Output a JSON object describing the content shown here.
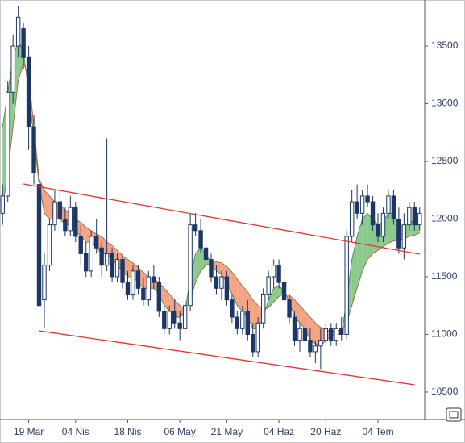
{
  "chart_data": {
    "type": "candlestick",
    "categories": [
      null,
      null,
      null,
      null,
      null,
      "19 Mar",
      null,
      null,
      null,
      null,
      null,
      null,
      null,
      null,
      "04 Nis",
      null,
      null,
      null,
      null,
      null,
      null,
      null,
      null,
      null,
      "18 Nis",
      null,
      null,
      null,
      null,
      null,
      null,
      null,
      null,
      null,
      "06 May",
      null,
      null,
      null,
      null,
      null,
      null,
      null,
      null,
      "21 May",
      null,
      null,
      null,
      null,
      null,
      null,
      null,
      null,
      null,
      "04 Haz",
      null,
      null,
      null,
      null,
      null,
      null,
      null,
      null,
      "20 Haz",
      null,
      null,
      null,
      null,
      null,
      null,
      null,
      null,
      null,
      "04 Tem",
      null,
      null,
      null,
      null,
      null,
      null,
      null,
      null
    ],
    "open": [
      12050,
      12200,
      13100,
      13500,
      13650,
      13400,
      12800,
      12300,
      11300,
      11600,
      11950,
      12150,
      12000,
      11900,
      12100,
      11850,
      11700,
      11550,
      11850,
      11750,
      11600,
      11700,
      11500,
      11650,
      11450,
      11350,
      11550,
      11400,
      11300,
      11500,
      11450,
      11200,
      11050,
      11200,
      11100,
      11050,
      11250,
      11950,
      11900,
      11750,
      11650,
      11500,
      11400,
      11500,
      11300,
      11150,
      11050,
      11200,
      11000,
      10850,
      11100,
      11350,
      11500,
      11600,
      11450,
      11300,
      11150,
      10950,
      11050,
      10950,
      10850,
      10900,
      10950,
      11050,
      10950,
      11050,
      11000,
      11850,
      12150,
      12050,
      12200,
      12150,
      11950,
      11850,
      12050,
      12200,
      12000,
      11750,
      11950,
      12100,
      11950
    ],
    "high": [
      12300,
      13200,
      13600,
      13850,
      13700,
      13500,
      12900,
      12350,
      11700,
      12000,
      12250,
      12250,
      12100,
      12200,
      12150,
      11950,
      11800,
      11900,
      12000,
      11800,
      12700,
      11750,
      11700,
      11700,
      11550,
      11600,
      11600,
      11500,
      11550,
      11600,
      11500,
      11250,
      11250,
      11300,
      11200,
      11300,
      12050,
      12050,
      12000,
      11900,
      11700,
      11600,
      11550,
      11550,
      11350,
      11200,
      11250,
      11300,
      11100,
      11150,
      11400,
      11550,
      11650,
      11650,
      11500,
      11350,
      11200,
      11100,
      11150,
      11050,
      10950,
      11050,
      11100,
      11100,
      11100,
      11150,
      11900,
      12250,
      12300,
      12250,
      12300,
      12200,
      12050,
      12100,
      12250,
      12250,
      12100,
      12050,
      12150,
      12150,
      12100
    ],
    "low": [
      11950,
      12150,
      13000,
      13400,
      13300,
      12600,
      12300,
      11200,
      11050,
      11550,
      11900,
      11950,
      11850,
      11850,
      11800,
      11600,
      11500,
      11500,
      11700,
      11500,
      11550,
      11450,
      11450,
      11400,
      11300,
      11300,
      11350,
      11250,
      11250,
      11400,
      11150,
      11000,
      11000,
      11050,
      10950,
      11000,
      11200,
      11850,
      11700,
      11600,
      11450,
      11350,
      11300,
      11250,
      11100,
      11000,
      11000,
      10950,
      10800,
      10800,
      11050,
      11300,
      11400,
      11400,
      11250,
      11100,
      10900,
      10850,
      10900,
      10800,
      10750,
      10700,
      10900,
      10900,
      10900,
      10950,
      10950,
      11800,
      12000,
      11950,
      12100,
      11900,
      11800,
      11800,
      12000,
      11950,
      11700,
      11650,
      11900,
      11900,
      11900
    ],
    "close": [
      12200,
      13100,
      13500,
      13750,
      13400,
      12800,
      12400,
      11250,
      11600,
      11950,
      12150,
      12000,
      11900,
      12100,
      11850,
      11700,
      11550,
      11850,
      11750,
      11600,
      11700,
      11500,
      11650,
      11450,
      11350,
      11550,
      11400,
      11300,
      11500,
      11450,
      11200,
      11050,
      11200,
      11100,
      11050,
      11250,
      11950,
      11900,
      11750,
      11650,
      11500,
      11400,
      11500,
      11300,
      11150,
      11050,
      11200,
      11000,
      10850,
      11100,
      11350,
      11500,
      11600,
      11450,
      11300,
      11150,
      10950,
      11050,
      10950,
      10850,
      10900,
      10950,
      11050,
      10950,
      11050,
      11000,
      11850,
      12150,
      12050,
      12200,
      12150,
      11950,
      11850,
      12050,
      12200,
      12000,
      11750,
      11950,
      12100,
      11950,
      12050
    ],
    "up_color": "#ffffff",
    "down_color": "#1c3766",
    "outline_color": "#1c3766",
    "band": {
      "up_color": "#8cc98c",
      "down_color": "#f2a484",
      "fast": {
        "color": "#3f7d3f",
        "values": [
          12800,
          13100,
          13400,
          13550,
          13450,
          13100,
          12700,
          12300,
          12050,
          12000,
          12000,
          12000,
          11950,
          11950,
          11900,
          11850,
          11800,
          11800,
          11750,
          11700,
          11700,
          11650,
          11600,
          11550,
          11500,
          11500,
          11450,
          11400,
          11400,
          11400,
          11350,
          11250,
          11200,
          11150,
          11150,
          11200,
          11500,
          11700,
          11750,
          11700,
          11620,
          11550,
          11520,
          11450,
          11350,
          11250,
          11200,
          11150,
          11050,
          11050,
          11150,
          11300,
          11400,
          11420,
          11380,
          11280,
          11150,
          11100,
          11050,
          10950,
          10920,
          10900,
          10950,
          10980,
          11000,
          11000,
          11300,
          11650,
          11850,
          12000,
          12050,
          12000,
          11950,
          11980,
          12050,
          12050,
          11950,
          11930,
          11980,
          11980,
          12000
        ]
      },
      "slow": {
        "color": "#9a5a3a",
        "values": [
          12100,
          12400,
          12800,
          13200,
          13350,
          13250,
          12800,
          12350,
          12250,
          12200,
          12150,
          12120,
          12080,
          12050,
          12000,
          11970,
          11930,
          11900,
          11870,
          11850,
          11800,
          11770,
          11730,
          11680,
          11650,
          11620,
          11580,
          11540,
          11500,
          11480,
          11450,
          11400,
          11350,
          11300,
          11250,
          11220,
          11300,
          11450,
          11550,
          11600,
          11620,
          11630,
          11620,
          11590,
          11540,
          11480,
          11420,
          11370,
          11300,
          11250,
          11220,
          11230,
          11280,
          11330,
          11350,
          11340,
          11300,
          11250,
          11200,
          11150,
          11100,
          11060,
          11040,
          11030,
          11030,
          11040,
          11100,
          11250,
          11400,
          11550,
          11650,
          11700,
          11730,
          11760,
          11790,
          11810,
          11820,
          11830,
          11850,
          11860,
          11880
        ]
      }
    },
    "trendlines": [
      {
        "color": "#e8322c",
        "start": [
          4,
          12304
        ],
        "end": [
          80,
          11696
        ]
      },
      {
        "color": "#e8322c",
        "start": [
          7,
          11031
        ],
        "end": [
          79,
          10563
        ]
      }
    ],
    "ylim": [
      10262,
      13899
    ],
    "yticks": [
      10500,
      11000,
      11500,
      12000,
      12500,
      13000,
      13500
    ],
    "grid": false
  }
}
